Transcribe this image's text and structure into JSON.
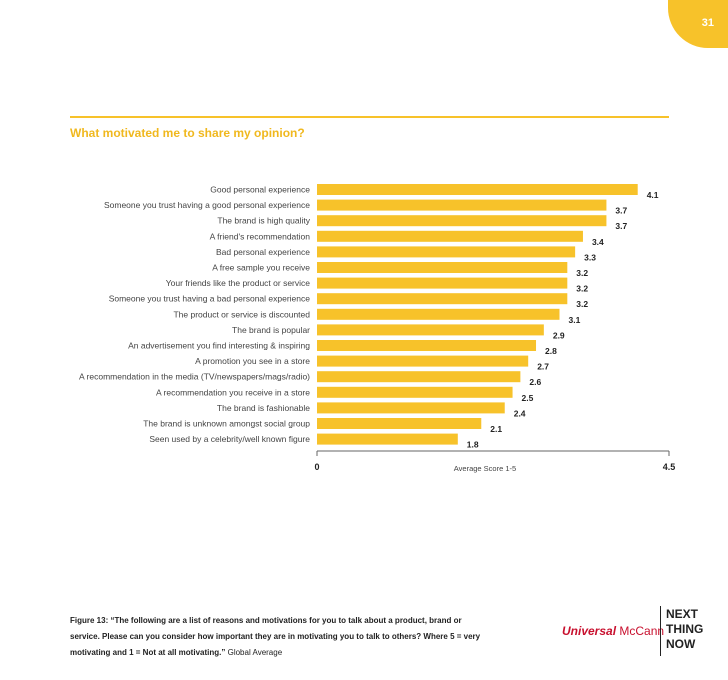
{
  "page_number": "31",
  "section_title": "What motivated me to share my opinion?",
  "chart_data": {
    "type": "bar",
    "orientation": "horizontal",
    "title": "What motivated me to share my opinion?",
    "xlabel": "Average Score 1-5",
    "xlim": [
      0,
      4.5
    ],
    "x_ticks": [
      "0",
      "4.5"
    ],
    "bar_color": "#f7c22a",
    "categories": [
      "Good personal experience",
      "Someone you trust having a good personal experience",
      "The  brand is high quality",
      "A friend's recommendation",
      "Bad personal experience",
      "A free sample you receive",
      "Your friends like the product or service",
      "Someone you trust having a bad personal experience",
      "The product or service is discounted",
      "The brand is popular",
      "An advertisement you find interesting & inspiring",
      "A promotion you see in a store",
      "A recommendation in the media (TV/newspapers/mags/radio)",
      "A recommendation you receive in a store",
      "The brand is fashionable",
      "The brand is unknown amongst social group",
      "Seen used by a celebrity/well known figure"
    ],
    "values": [
      4.1,
      3.7,
      3.7,
      3.4,
      3.3,
      3.2,
      3.2,
      3.2,
      3.1,
      2.9,
      2.8,
      2.7,
      2.6,
      2.5,
      2.4,
      2.1,
      1.8
    ]
  },
  "caption": {
    "figure_label": "Figure 13: “The following are a list of reasons and motivations for you to talk about a product, brand or service. Please can you consider how important they are in motivating you to talk to others? Where 5 = very motivating and 1 = Not at all motivating.”",
    "scope": "Global Average"
  },
  "logos": {
    "universal": "Universal",
    "mccann": "McCann",
    "next": "NEXT",
    "thing": "THING",
    "now": "NOW"
  },
  "colors": {
    "accent": "#f7c22a",
    "brand_red": "#c8102e"
  }
}
